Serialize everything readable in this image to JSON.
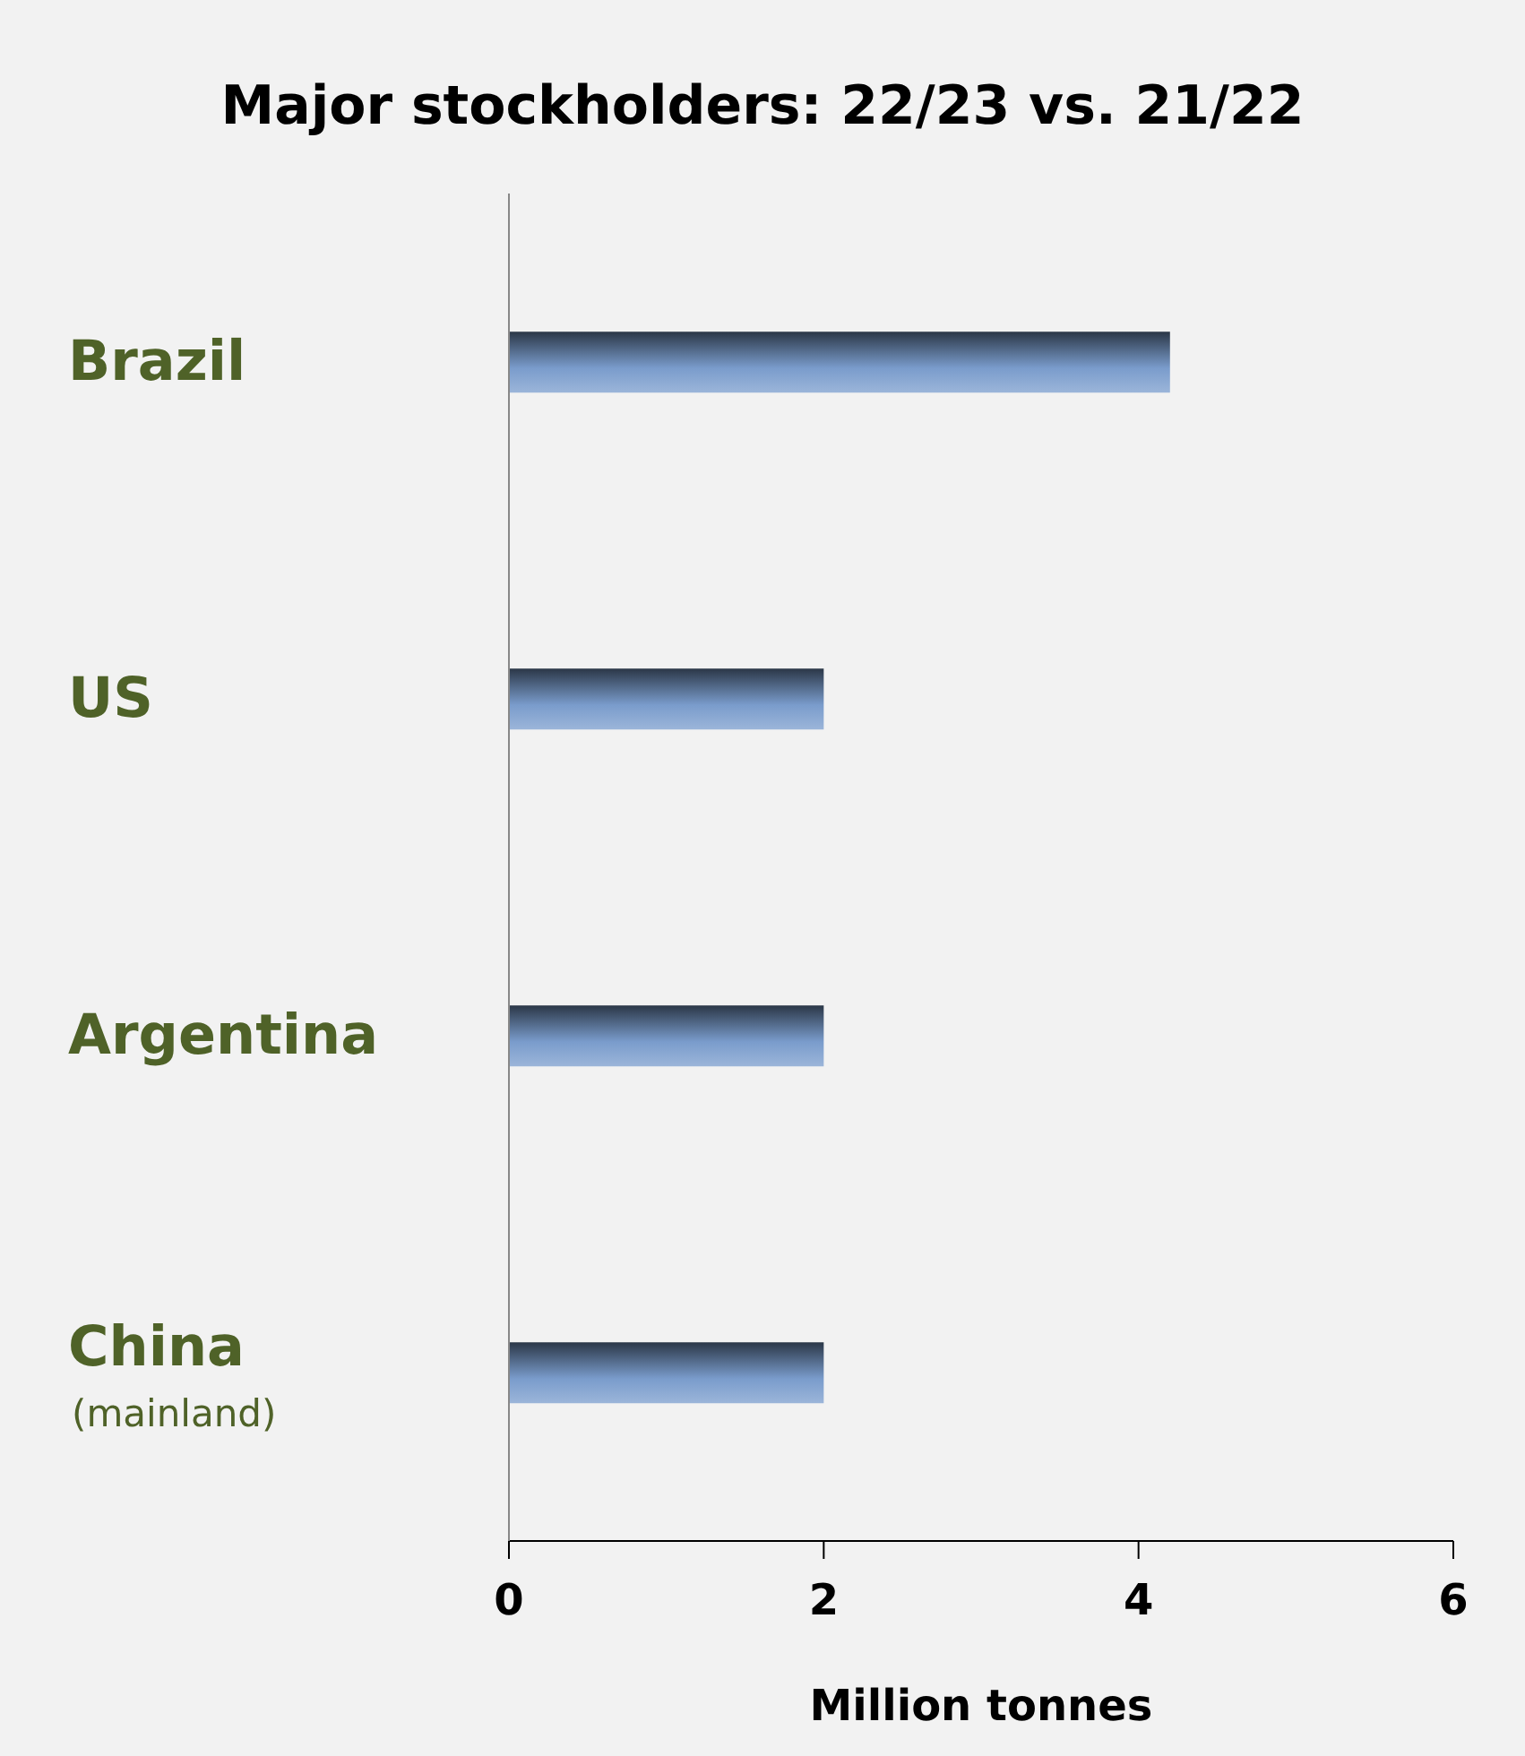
{
  "chart_data": {
    "type": "bar",
    "orientation": "horizontal",
    "title": "Major stockholders: 22/23 vs. 21/22",
    "xlabel": "Million tonnes",
    "categories": [
      "Brazil",
      "US",
      "Argentina",
      "China (mainland)"
    ],
    "values": [
      4.2,
      2.0,
      2.0,
      2.0
    ],
    "color": "#7a9ccc",
    "xlim": [
      0,
      6
    ],
    "xticks": [
      0,
      2,
      4,
      6
    ],
    "grid": false,
    "legend": false
  }
}
